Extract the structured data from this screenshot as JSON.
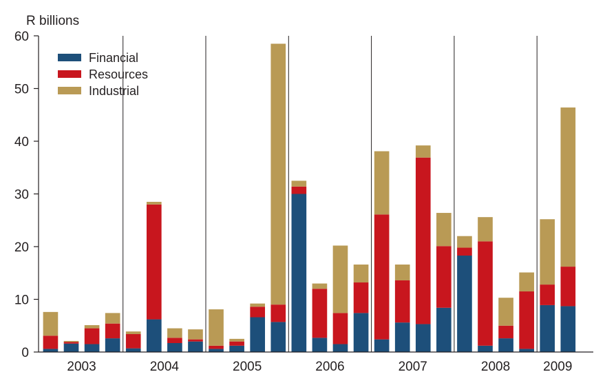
{
  "chart_data": {
    "type": "bar",
    "stacked": true,
    "ylabel": "R billions",
    "ylim": [
      0,
      60
    ],
    "yticks": [
      0,
      10,
      20,
      30,
      40,
      50,
      60
    ],
    "grid": false,
    "legend_position": "top-left",
    "year_labels": [
      "2003",
      "2004",
      "2005",
      "2006",
      "2007",
      "2008",
      "2009"
    ],
    "quarters_per_year": [
      4,
      4,
      4,
      4,
      4,
      4,
      2
    ],
    "series": [
      {
        "name": "Financial",
        "color": "#1d4f7a",
        "values": [
          0.6,
          1.6,
          1.5,
          2.6,
          0.7,
          6.2,
          1.7,
          2.0,
          0.6,
          1.2,
          6.6,
          5.7,
          30.0,
          2.7,
          1.5,
          7.4,
          2.4,
          5.6,
          5.3,
          8.4,
          18.3,
          1.2,
          2.6,
          0.6,
          8.9,
          8.7
        ]
      },
      {
        "name": "Resources",
        "color": "#c8161e",
        "values": [
          2.5,
          0.3,
          3.0,
          2.8,
          2.7,
          21.8,
          1.0,
          0.4,
          0.6,
          0.8,
          2.0,
          3.3,
          1.4,
          9.3,
          5.9,
          5.8,
          23.7,
          8.0,
          31.6,
          11.7,
          1.5,
          19.8,
          2.4,
          10.9,
          3.9,
          7.5
        ]
      },
      {
        "name": "Industrial",
        "color": "#b99a55",
        "values": [
          4.5,
          0.2,
          0.6,
          2.0,
          0.5,
          0.5,
          1.8,
          1.9,
          6.9,
          0.5,
          0.6,
          49.5,
          1.1,
          1.0,
          12.8,
          3.4,
          12.0,
          3.0,
          2.3,
          6.3,
          2.2,
          4.6,
          5.3,
          3.6,
          12.4,
          30.2
        ]
      }
    ]
  }
}
